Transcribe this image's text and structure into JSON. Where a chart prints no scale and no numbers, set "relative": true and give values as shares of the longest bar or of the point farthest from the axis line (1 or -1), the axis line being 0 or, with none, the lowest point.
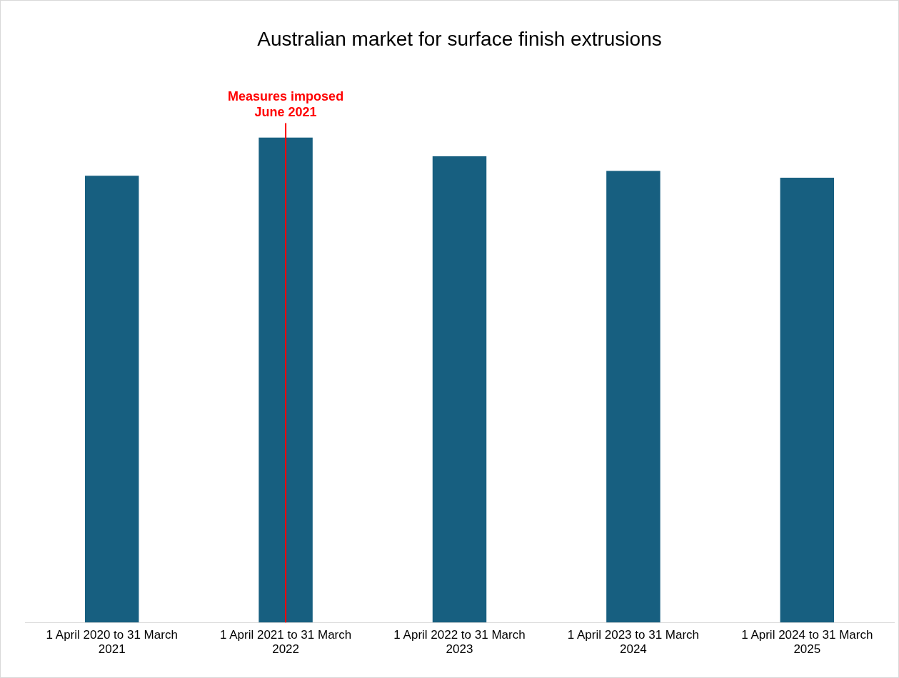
{
  "chart_data": {
    "type": "bar",
    "title": "Australian market for surface finish extrusions",
    "relative": true,
    "categories": [
      "1 April 2020 to 31 March 2021",
      "1 April 2021 to 31 March 2022",
      "1 April 2022 to 31 March 2023",
      "1 April 2023 to 31 March 2024",
      "1 April 2024 to 31 March 2025"
    ],
    "values": [
      0.921,
      1,
      0.961,
      0.931,
      0.917
    ],
    "color": "#175f80",
    "grid": false,
    "legend": false,
    "ref_lines": [
      {
        "axis": "x",
        "value": "1 April 2021 to 31 March 2022",
        "label": "Measures imposed\nJune 2021",
        "color": "#ff0000"
      }
    ]
  }
}
